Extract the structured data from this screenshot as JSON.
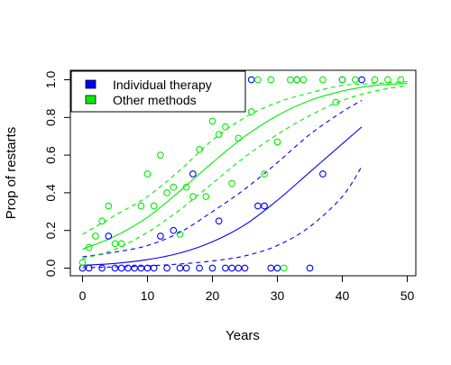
{
  "chart_data": {
    "type": "scatter",
    "title": "",
    "xlabel": "Years",
    "ylabel": "Prop of restarts",
    "xlim": [
      0,
      50
    ],
    "ylim": [
      0,
      1
    ],
    "x_ticks": [
      "0",
      "10",
      "20",
      "30",
      "40",
      "50"
    ],
    "y_ticks": [
      "0.0",
      "0.2",
      "0.4",
      "0.6",
      "0.8",
      "1.0"
    ],
    "x_tick_values": [
      0,
      10,
      20,
      30,
      40,
      50
    ],
    "y_tick_values": [
      0,
      0.2,
      0.4,
      0.6,
      0.8,
      1.0
    ],
    "grid": false,
    "legend_position": "top-left",
    "legend": [
      {
        "label": "Individual therapy",
        "color": "#0000ff"
      },
      {
        "label": "Other methods",
        "color": "#00ee00"
      }
    ],
    "series": [
      {
        "name": "Individual therapy",
        "color": "#0000ff",
        "points": [
          [
            0,
            0
          ],
          [
            1,
            0
          ],
          [
            3,
            0
          ],
          [
            4,
            0.17
          ],
          [
            5,
            0
          ],
          [
            6,
            0
          ],
          [
            7,
            0
          ],
          [
            8,
            0
          ],
          [
            9,
            0
          ],
          [
            10,
            0
          ],
          [
            11,
            0
          ],
          [
            12,
            0.17
          ],
          [
            13,
            0
          ],
          [
            14,
            0.2
          ],
          [
            15,
            0
          ],
          [
            16,
            0
          ],
          [
            17,
            0.5
          ],
          [
            18,
            0
          ],
          [
            20,
            0
          ],
          [
            21,
            0.25
          ],
          [
            22,
            0
          ],
          [
            23,
            0
          ],
          [
            24,
            0
          ],
          [
            25,
            0
          ],
          [
            26,
            1.0
          ],
          [
            27,
            0.33
          ],
          [
            28,
            0.33
          ],
          [
            29,
            0
          ],
          [
            30,
            0
          ],
          [
            33,
            1.0
          ],
          [
            35,
            0
          ],
          [
            37,
            0.5
          ],
          [
            40,
            1.0
          ],
          [
            43,
            1.0
          ]
        ],
        "fit_x": [
          0,
          5,
          10,
          15,
          20,
          25,
          30,
          35,
          40,
          43
        ],
        "fit": [
          0.015,
          0.025,
          0.045,
          0.08,
          0.14,
          0.23,
          0.36,
          0.51,
          0.66,
          0.75
        ],
        "fit_lower": [
          0.003,
          0.006,
          0.012,
          0.022,
          0.038,
          0.065,
          0.12,
          0.22,
          0.38,
          0.54
        ],
        "fit_upper": [
          0.06,
          0.085,
          0.12,
          0.19,
          0.3,
          0.42,
          0.56,
          0.71,
          0.83,
          0.89
        ]
      },
      {
        "name": "Other methods",
        "color": "#00ee00",
        "points": [
          [
            0,
            0.03
          ],
          [
            1,
            0.11
          ],
          [
            2,
            0.17
          ],
          [
            3,
            0.25
          ],
          [
            4,
            0.33
          ],
          [
            5,
            0.13
          ],
          [
            6,
            0.13
          ],
          [
            9,
            0.33
          ],
          [
            10,
            0.5
          ],
          [
            11,
            0.33
          ],
          [
            12,
            0.6
          ],
          [
            13,
            0.4
          ],
          [
            14,
            0.43
          ],
          [
            15,
            0.18
          ],
          [
            16,
            0.43
          ],
          [
            17,
            0.38
          ],
          [
            18,
            0.63
          ],
          [
            19,
            0.38
          ],
          [
            20,
            0.78
          ],
          [
            21,
            0.71
          ],
          [
            22,
            0.75
          ],
          [
            23,
            0.45
          ],
          [
            24,
            0.69
          ],
          [
            26,
            0.83
          ],
          [
            27,
            1.0
          ],
          [
            28,
            0.5
          ],
          [
            29,
            1.0
          ],
          [
            30,
            0.67
          ],
          [
            31,
            0
          ],
          [
            32,
            1.0
          ],
          [
            33,
            1.0
          ],
          [
            34,
            1.0
          ],
          [
            37,
            1.0
          ],
          [
            39,
            0.88
          ],
          [
            40,
            1.0
          ],
          [
            42,
            1.0
          ],
          [
            45,
            1.0
          ],
          [
            47,
            1.0
          ],
          [
            49,
            1.0
          ]
        ],
        "fit_x": [
          0,
          5,
          10,
          15,
          20,
          25,
          30,
          35,
          40,
          45,
          50
        ],
        "fit": [
          0.1,
          0.17,
          0.27,
          0.41,
          0.56,
          0.7,
          0.81,
          0.89,
          0.94,
          0.97,
          0.98
        ],
        "fit_lower": [
          0.05,
          0.1,
          0.19,
          0.31,
          0.45,
          0.59,
          0.71,
          0.81,
          0.89,
          0.94,
          0.97
        ],
        "fit_upper": [
          0.18,
          0.28,
          0.38,
          0.52,
          0.68,
          0.8,
          0.88,
          0.93,
          0.97,
          0.98,
          0.99
        ]
      }
    ]
  }
}
